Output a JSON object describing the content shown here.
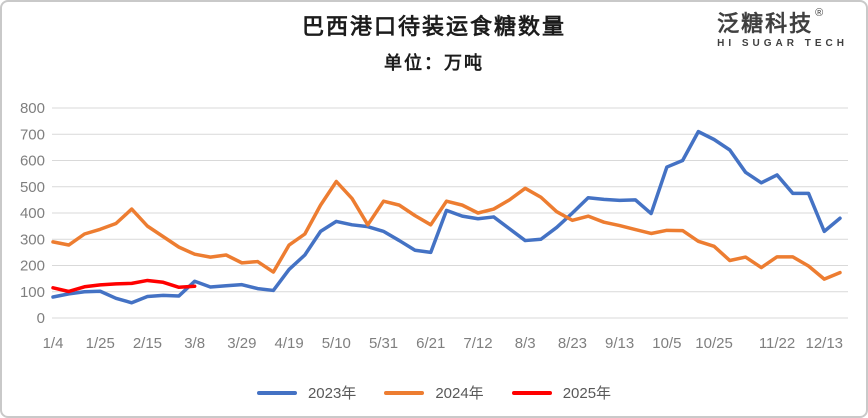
{
  "header": {
    "title": "巴西港口待装运食糖数量",
    "subtitle": "单位：万吨"
  },
  "logo": {
    "name_cn": "泛糖科技",
    "registered_mark": "®",
    "name_en": "HI SUGAR TECH"
  },
  "chart_data": {
    "type": "line",
    "title": "巴西港口待装运食糖数量",
    "unit_label": "单位：万吨",
    "xlabel": "",
    "ylabel": "",
    "ylim": [
      0,
      800
    ],
    "y_ticks": [
      0,
      100,
      200,
      300,
      400,
      500,
      600,
      700,
      800
    ],
    "grid": "horizontal",
    "legend_position": "bottom",
    "grid_color": "#d9d9d9",
    "tick_color": "#7f7f7f",
    "points_per_full_series": 51,
    "x_interval": "weekly",
    "x_tick_labels": [
      "1/4",
      "1/25",
      "2/15",
      "3/8",
      "3/29",
      "4/19",
      "5/10",
      "5/31",
      "6/21",
      "7/12",
      "8/3",
      "8/23",
      "9/13",
      "10/5",
      "10/25",
      "11/22",
      "12/13"
    ],
    "x_tick_indices": [
      0,
      3,
      6,
      9,
      12,
      15,
      18,
      21,
      24,
      27,
      30,
      33,
      36,
      39,
      42,
      46,
      49
    ],
    "series": [
      {
        "name": "2023年",
        "color": "#4472C4",
        "values": [
          80,
          92,
          100,
          102,
          75,
          58,
          82,
          86,
          84,
          140,
          118,
          123,
          127,
          112,
          105,
          185,
          240,
          330,
          368,
          355,
          348,
          330,
          295,
          258,
          250,
          410,
          388,
          378,
          385,
          340,
          295,
          300,
          345,
          400,
          458,
          452,
          448,
          450,
          398,
          575,
          600,
          710,
          680,
          640,
          555,
          515,
          545,
          475,
          475,
          330,
          380
        ]
      },
      {
        "name": "2024年",
        "color": "#ED7D31",
        "values": [
          290,
          278,
          320,
          338,
          360,
          415,
          350,
          310,
          270,
          243,
          232,
          240,
          210,
          215,
          175,
          278,
          320,
          430,
          520,
          455,
          355,
          445,
          430,
          390,
          355,
          445,
          430,
          400,
          415,
          450,
          494,
          460,
          405,
          372,
          388,
          365,
          352,
          337,
          322,
          334,
          333,
          292,
          273,
          219,
          232,
          192,
          233,
          233,
          198,
          148,
          173
        ]
      },
      {
        "name": "2025年",
        "color": "#FF0000",
        "values": [
          115,
          101,
          119,
          126,
          130,
          132,
          143,
          136,
          117,
          121
        ]
      }
    ]
  }
}
